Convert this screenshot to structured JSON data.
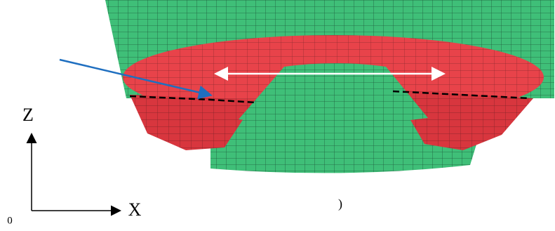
{
  "axes": {
    "z_label": "Z",
    "x_label": "X",
    "origin_label": "0"
  },
  "caption": ")"
}
